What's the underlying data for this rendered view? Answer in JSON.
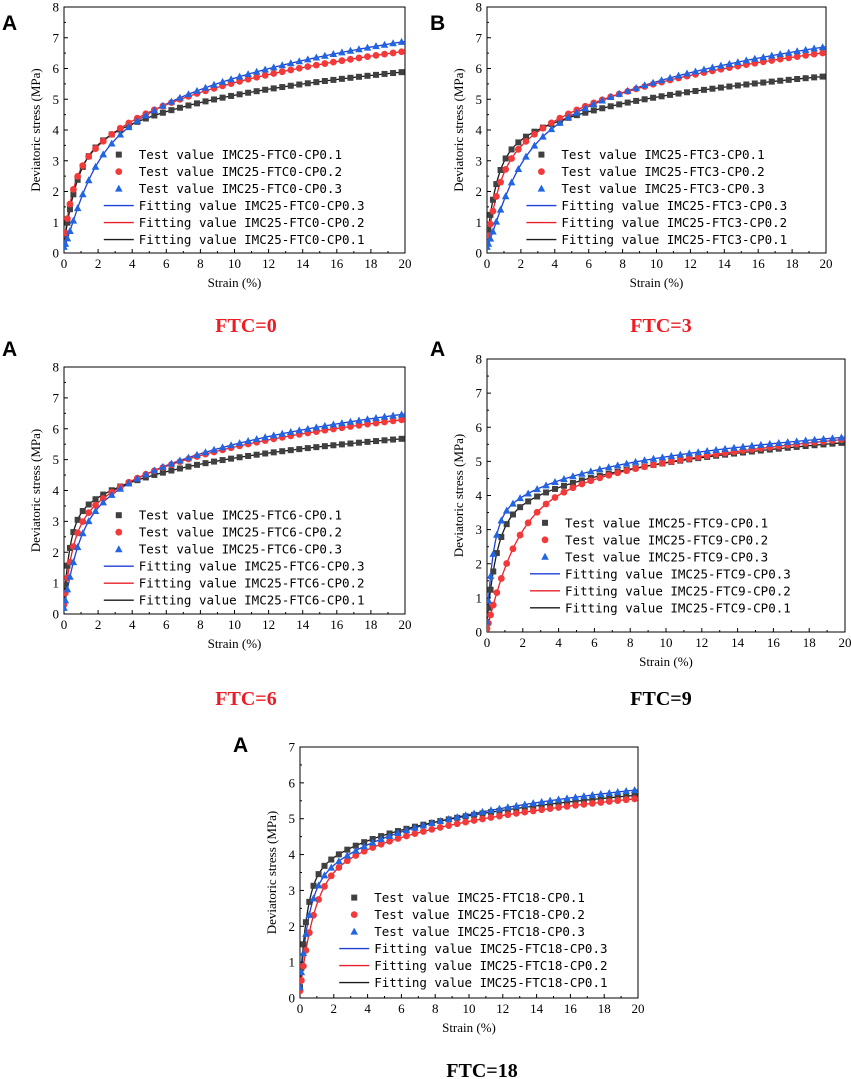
{
  "colors": {
    "cp01": "#404040",
    "cp02": "#f23a3a",
    "cp03": "#2166e0",
    "fit01": "#1a1a1a",
    "fit02": "#e8202a",
    "fit03": "#1f3fd6",
    "caption_red": "#ee1c24",
    "caption_black": "#000000"
  },
  "chart_data": [
    {
      "type": "scatter",
      "panel_label": "A",
      "caption": "FTC=0",
      "caption_color": "red",
      "xlabel": "Strain (%)",
      "ylabel": "Deviatoric stress (MPa)",
      "xlim": [
        0,
        20
      ],
      "ylim": [
        0,
        8
      ],
      "xticks": [
        "0",
        "2",
        "4",
        "6",
        "8",
        "10",
        "12",
        "14",
        "16",
        "18",
        "20"
      ],
      "yticks": [
        "0",
        "1",
        "2",
        "3",
        "4",
        "5",
        "6",
        "7",
        "8"
      ],
      "legend_position": "center-right",
      "series": [
        {
          "name": "Test value IMC25-FTC0-CP0.1",
          "kind": "test",
          "marker": "square",
          "color_key": "cp01",
          "y0": 0.3,
          "a": 2.3,
          "b": 1.18,
          "mid": 0.6
        },
        {
          "name": "Test value IMC25-FTC0-CP0.2",
          "kind": "test",
          "marker": "circle",
          "color_key": "cp02",
          "y0": 0.3,
          "a": 1.75,
          "b": 1.58,
          "mid": 0.35
        },
        {
          "name": "Test value IMC25-FTC0-CP0.3",
          "kind": "test",
          "marker": "triangle",
          "color_key": "cp03",
          "y0": 0.2,
          "a": 1.25,
          "b": 1.85,
          "mid": 1.0
        },
        {
          "name": "Fitting value IMC25-FTC0-CP0.3",
          "kind": "fit",
          "color_key": "fit03",
          "y0": 0.2,
          "a": 1.25,
          "b": 1.85,
          "mid": 1.0
        },
        {
          "name": "Fitting value IMC25-FTC0-CP0.2",
          "kind": "fit",
          "color_key": "fit02",
          "y0": 0.3,
          "a": 1.75,
          "b": 1.58,
          "mid": 0.35
        },
        {
          "name": "Fitting value IMC25-FTC0-CP0.1",
          "kind": "fit",
          "color_key": "fit01",
          "y0": 0.3,
          "a": 2.3,
          "b": 1.18,
          "mid": 0.6
        }
      ]
    },
    {
      "type": "scatter",
      "panel_label": "B",
      "caption": "FTC=3",
      "caption_color": "red",
      "xlabel": "Strain (%)",
      "ylabel": "Deviatoric stress (MPa)",
      "xlim": [
        0,
        20
      ],
      "ylim": [
        0,
        8
      ],
      "xticks": [
        "0",
        "2",
        "4",
        "6",
        "8",
        "10",
        "12",
        "14",
        "16",
        "18",
        "20"
      ],
      "yticks": [
        "0",
        "1",
        "2",
        "3",
        "4",
        "5",
        "6",
        "7",
        "8"
      ],
      "legend_position": "center-right",
      "series": [
        {
          "name": "Test value IMC25-FTC3-CP0.1",
          "kind": "test",
          "marker": "square",
          "color_key": "cp01",
          "y0": 0.4,
          "a": 2.55,
          "b": 1.05,
          "mid": 0.5
        },
        {
          "name": "Test value IMC25-FTC3-CP0.2",
          "kind": "test",
          "marker": "circle",
          "color_key": "cp02",
          "y0": 0.3,
          "a": 1.8,
          "b": 1.55,
          "mid": 0.5
        },
        {
          "name": "Test value IMC25-FTC3-CP0.3",
          "kind": "test",
          "marker": "triangle",
          "color_key": "cp03",
          "y0": 0.2,
          "a": 1.35,
          "b": 1.76,
          "mid": 1.1
        },
        {
          "name": "Fitting value IMC25-FTC3-CP0.3",
          "kind": "fit",
          "color_key": "fit03",
          "y0": 0.2,
          "a": 1.35,
          "b": 1.76,
          "mid": 1.1
        },
        {
          "name": "Fitting value IMC25-FTC3-CP0.2",
          "kind": "fit",
          "color_key": "fit02",
          "y0": 0.3,
          "a": 1.8,
          "b": 1.55,
          "mid": 0.5
        },
        {
          "name": "Fitting value IMC25-FTC3-CP0.1",
          "kind": "fit",
          "color_key": "fit01",
          "y0": 0.4,
          "a": 2.55,
          "b": 1.05,
          "mid": 0.5
        }
      ]
    },
    {
      "type": "scatter",
      "panel_label": "A",
      "caption": "FTC=6",
      "caption_color": "red",
      "xlabel": "Strain (%)",
      "ylabel": "Deviatoric stress (MPa)",
      "xlim": [
        0,
        20
      ],
      "ylim": [
        0,
        8
      ],
      "xticks": [
        "0",
        "2",
        "4",
        "6",
        "8",
        "10",
        "12",
        "14",
        "16",
        "18",
        "20"
      ],
      "yticks": [
        "0",
        "1",
        "2",
        "3",
        "4",
        "5",
        "6",
        "7",
        "8"
      ],
      "legend_position": "center-right",
      "series": [
        {
          "name": "Test value IMC25-FTC6-CP0.1",
          "kind": "test",
          "marker": "square",
          "color_key": "cp01",
          "y0": 0.4,
          "a": 2.7,
          "b": 0.98,
          "mid": 0.35
        },
        {
          "name": "Test value IMC25-FTC6-CP0.2",
          "kind": "test",
          "marker": "circle",
          "color_key": "cp02",
          "y0": 0.3,
          "a": 2.1,
          "b": 1.38,
          "mid": 0.4
        },
        {
          "name": "Test value IMC25-FTC6-CP0.3",
          "kind": "test",
          "marker": "triangle",
          "color_key": "cp03",
          "y0": 0.2,
          "a": 1.85,
          "b": 1.52,
          "mid": 0.6
        },
        {
          "name": "Fitting value IMC25-FTC6-CP0.3",
          "kind": "fit",
          "color_key": "fit03",
          "y0": 0.2,
          "a": 1.85,
          "b": 1.52,
          "mid": 0.6
        },
        {
          "name": "Fitting value IMC25-FTC6-CP0.2",
          "kind": "fit",
          "color_key": "fit02",
          "y0": 0.3,
          "a": 2.1,
          "b": 1.38,
          "mid": 0.4
        },
        {
          "name": "Fitting value IMC25-FTC6-CP0.1",
          "kind": "fit",
          "color_key": "fit01",
          "y0": 0.4,
          "a": 2.7,
          "b": 0.98,
          "mid": 0.35
        }
      ]
    },
    {
      "type": "scatter",
      "panel_label": "A",
      "caption": "FTC=9",
      "caption_color": "black",
      "xlabel": "Strain (%)",
      "ylabel": "Deviatoric stress (MPa)",
      "xlim": [
        0,
        20
      ],
      "ylim": [
        0,
        8
      ],
      "xticks": [
        "0",
        "2",
        "4",
        "6",
        "8",
        "10",
        "12",
        "14",
        "16",
        "18",
        "20"
      ],
      "yticks": [
        "0",
        "1",
        "2",
        "3",
        "4",
        "5",
        "6",
        "7",
        "8"
      ],
      "legend_position": "center-right",
      "series": [
        {
          "name": "Test value IMC25-FTC9-CP0.1",
          "kind": "test",
          "marker": "square",
          "color_key": "cp01",
          "y0": 0.3,
          "a": 2.75,
          "b": 0.92,
          "mid": 0.5
        },
        {
          "name": "Test value IMC25-FTC9-CP0.2",
          "kind": "test",
          "marker": "circle",
          "color_key": "cp02",
          "y0": 0.1,
          "a": 2.45,
          "b": 1.05,
          "mid": 1.3
        },
        {
          "name": "Test value IMC25-FTC9-CP0.3",
          "kind": "test",
          "marker": "triangle",
          "color_key": "cp03",
          "y0": 0.3,
          "a": 3.0,
          "b": 0.89,
          "mid": 0.35
        },
        {
          "name": "Fitting value IMC25-FTC9-CP0.3",
          "kind": "fit",
          "color_key": "fit03",
          "y0": 0.3,
          "a": 3.0,
          "b": 0.89,
          "mid": 0.35
        },
        {
          "name": "Fitting value IMC25-FTC9-CP0.2",
          "kind": "fit",
          "color_key": "fit02",
          "y0": 0.1,
          "a": 2.45,
          "b": 1.05,
          "mid": 1.3
        },
        {
          "name": "Fitting value IMC25-FTC9-CP0.1",
          "kind": "fit",
          "color_key": "fit01",
          "y0": 0.3,
          "a": 2.75,
          "b": 0.92,
          "mid": 0.5
        }
      ]
    },
    {
      "type": "scatter",
      "panel_label": "A",
      "caption": "FTC=18",
      "caption_color": "black",
      "xlabel": "Strain (%)",
      "ylabel": "Deviatoric stress (MPa)",
      "xlim": [
        0,
        20
      ],
      "ylim": [
        0,
        7
      ],
      "xticks": [
        "0",
        "2",
        "4",
        "6",
        "8",
        "10",
        "12",
        "14",
        "16",
        "18",
        "20"
      ],
      "yticks": [
        "0",
        "1",
        "2",
        "3",
        "4",
        "5",
        "6",
        "7"
      ],
      "legend_position": "center-right",
      "series": [
        {
          "name": "Test value IMC25-FTC18-CP0.1",
          "kind": "test",
          "marker": "square",
          "color_key": "cp01",
          "y0": 0.3,
          "a": 2.95,
          "b": 0.89,
          "mid": 0.4
        },
        {
          "name": "Test value IMC25-FTC18-CP0.2",
          "kind": "test",
          "marker": "circle",
          "color_key": "cp02",
          "y0": 0.2,
          "a": 2.55,
          "b": 0.99,
          "mid": 0.7
        },
        {
          "name": "Test value IMC25-FTC18-CP0.3",
          "kind": "test",
          "marker": "triangle",
          "color_key": "cp03",
          "y0": 0.3,
          "a": 2.55,
          "b": 1.07,
          "mid": 0.45
        },
        {
          "name": "Fitting value IMC25-FTC18-CP0.3",
          "kind": "fit",
          "color_key": "fit03",
          "y0": 0.3,
          "a": 2.55,
          "b": 1.07,
          "mid": 0.45
        },
        {
          "name": "Fitting value IMC25-FTC18-CP0.2",
          "kind": "fit",
          "color_key": "fit02",
          "y0": 0.2,
          "a": 2.55,
          "b": 0.99,
          "mid": 0.7
        },
        {
          "name": "Fitting value IMC25-FTC18-CP0.1",
          "kind": "fit",
          "color_key": "fit01",
          "y0": 0.3,
          "a": 2.95,
          "b": 0.89,
          "mid": 0.4
        }
      ]
    }
  ]
}
